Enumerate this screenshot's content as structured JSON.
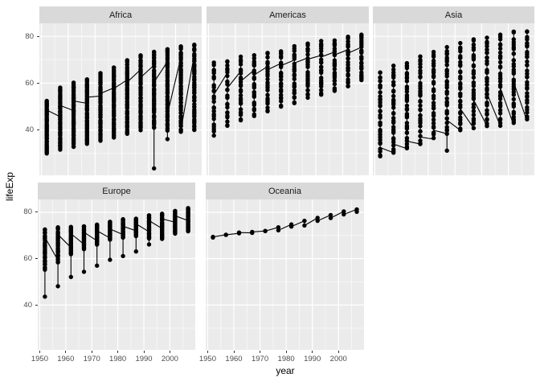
{
  "figure": {
    "background": "#FFFFFF"
  },
  "style": {
    "panel_bg": "#EBEBEB",
    "strip_bg": "#D9D9D9",
    "strip_text_color": "#1A1A1A",
    "grid_major": "#FFFFFF",
    "grid_minor": "rgba(255,255,255,0.55)",
    "point_color": "#000000",
    "line_color": "#000000",
    "axis_text_color": "#4D4D4D",
    "tick_mark_color": "#333333",
    "point_radius": 2.7,
    "line_width": 1.1
  },
  "axes": {
    "x_title": "year",
    "y_title": "lifeExp",
    "x_ticks": [
      {
        "value": 1950,
        "label": "1950"
      },
      {
        "value": 1960,
        "label": "1960"
      },
      {
        "value": 1970,
        "label": "1970"
      },
      {
        "value": 1980,
        "label": "1980"
      },
      {
        "value": 1990,
        "label": "1990"
      },
      {
        "value": 2000,
        "label": "2000"
      }
    ],
    "y_ticks": [
      {
        "value": 80,
        "label": "80"
      },
      {
        "value": 60,
        "label": "60"
      },
      {
        "value": 40,
        "label": "40"
      }
    ],
    "x_minor": [
      1955,
      1965,
      1975,
      1985,
      1995,
      2005
    ],
    "y_minor": [
      30,
      50,
      70
    ],
    "x_domain": [
      1949.25,
      2009.75
    ],
    "y_domain": [
      20.65,
      85.55
    ]
  },
  "chart_data": {
    "type": "scatter",
    "title": "",
    "xlabel": "year",
    "ylabel": "lifeExp",
    "facet_by": "continent",
    "legend": "none",
    "years": [
      1952,
      1957,
      1962,
      1967,
      1972,
      1977,
      1982,
      1987,
      1992,
      1997,
      2002,
      2007
    ],
    "facets": [
      {
        "label": "Africa",
        "n_countries": 52,
        "columns": [
          {
            "min": 30.0,
            "max": 52.7
          },
          {
            "min": 31.6,
            "max": 58.1
          },
          {
            "min": 32.8,
            "max": 60.2
          },
          {
            "min": 34.1,
            "max": 61.6
          },
          {
            "min": 35.4,
            "max": 64.3
          },
          {
            "min": 36.8,
            "max": 67.1
          },
          {
            "min": 38.4,
            "max": 69.9
          },
          {
            "min": 39.9,
            "max": 71.9
          },
          {
            "min": 40.6,
            "max": 73.6,
            "outliers": [
              23.6
            ]
          },
          {
            "min": 39.5,
            "max": 74.8,
            "outliers": [
              36.1
            ]
          },
          {
            "min": 39.2,
            "max": 75.7
          },
          {
            "min": 39.6,
            "max": 76.4
          }
        ],
        "line_first": [
          43.1,
          45.7,
          48.3,
          51.4,
          54.5,
          58.0,
          61.4,
          65.8,
          67.7,
          69.2,
          71.0,
          72.3
        ],
        "line_last": [
          48.5,
          50.5,
          52.4,
          54.0,
          55.6,
          57.7,
          60.4,
          62.4,
          60.4,
          46.8,
          40.0,
          43.5
        ]
      },
      {
        "label": "Americas",
        "n_countries": 25,
        "columns": [
          {
            "min": 37.6,
            "max": 68.8
          },
          {
            "min": 40.9,
            "max": 70.0
          },
          {
            "min": 43.4,
            "max": 71.3
          },
          {
            "min": 46.0,
            "max": 72.1
          },
          {
            "min": 48.0,
            "max": 72.9
          },
          {
            "min": 49.9,
            "max": 74.2
          },
          {
            "min": 51.5,
            "max": 75.8
          },
          {
            "min": 53.6,
            "max": 76.9
          },
          {
            "min": 55.1,
            "max": 78.0
          },
          {
            "min": 56.7,
            "max": 78.6
          },
          {
            "min": 58.1,
            "max": 79.8
          },
          {
            "min": 60.9,
            "max": 80.7
          }
        ],
        "line_first": [
          62.5,
          64.4,
          65.1,
          65.6,
          67.1,
          68.5,
          69.9,
          70.8,
          71.9,
          73.3,
          74.3,
          75.3
        ],
        "line_last": [
          55.1,
          57.9,
          60.8,
          63.5,
          65.7,
          67.5,
          68.6,
          70.2,
          71.2,
          72.1,
          72.8,
          73.7
        ]
      },
      {
        "label": "Asia",
        "n_countries": 33,
        "columns": [
          {
            "min": 28.8,
            "max": 65.4
          },
          {
            "min": 30.3,
            "max": 67.8
          },
          {
            "min": 32.0,
            "max": 69.4
          },
          {
            "min": 34.0,
            "max": 71.4
          },
          {
            "min": 36.1,
            "max": 73.4
          },
          {
            "min": 38.4,
            "max": 75.4,
            "outliers": [
              31.2
            ]
          },
          {
            "min": 39.9,
            "max": 77.1
          },
          {
            "min": 40.8,
            "max": 78.7
          },
          {
            "min": 41.7,
            "max": 79.4
          },
          {
            "min": 41.8,
            "max": 80.7
          },
          {
            "min": 42.1,
            "max": 82.0
          },
          {
            "min": 43.8,
            "max": 82.6
          }
        ],
        "line_first": [
          28.8,
          30.3,
          32.0,
          34.0,
          36.1,
          38.4,
          39.9,
          40.8,
          41.7,
          41.8,
          42.1,
          43.8
        ],
        "line_last": [
          32.5,
          34.0,
          35.2,
          37.0,
          39.9,
          44.2,
          49.1,
          52.9,
          55.6,
          58.0,
          60.3,
          62.7
        ]
      },
      {
        "label": "Europe",
        "n_countries": 30,
        "columns": [
          {
            "min": 55.2,
            "max": 72.7,
            "outliers": [
              43.6
            ]
          },
          {
            "min": 58.4,
            "max": 73.5,
            "outliers": [
              48.1
            ]
          },
          {
            "min": 61.9,
            "max": 73.7,
            "outliers": [
              52.1
            ]
          },
          {
            "min": 64.1,
            "max": 74.2,
            "outliers": [
              54.3
            ]
          },
          {
            "min": 66.0,
            "max": 74.7,
            "outliers": [
              57.0
            ]
          },
          {
            "min": 68.0,
            "max": 76.1,
            "outliers": [
              59.5
            ]
          },
          {
            "min": 69.1,
            "max": 77.0,
            "outliers": [
              61.1
            ]
          },
          {
            "min": 69.6,
            "max": 77.4,
            "outliers": [
              63.1
            ]
          },
          {
            "min": 68.5,
            "max": 78.8,
            "outliers": [
              66.1
            ]
          },
          {
            "min": 68.3,
            "max": 79.4
          },
          {
            "min": 70.8,
            "max": 80.6
          },
          {
            "min": 71.8,
            "max": 81.8
          }
        ],
        "line_first": [
          55.2,
          59.3,
          64.8,
          66.2,
          67.7,
          68.9,
          70.4,
          72.0,
          71.6,
          73.0,
          75.7,
          76.4
        ],
        "line_last": [
          69.2,
          70.4,
          70.8,
          71.4,
          72.0,
          72.8,
          74.0,
          75.0,
          76.4,
          77.2,
          78.5,
          79.4
        ]
      },
      {
        "label": "Oceania",
        "n_countries": 2,
        "columns": [
          {
            "min": 69.12,
            "max": 69.39
          },
          {
            "min": 70.26,
            "max": 70.33
          },
          {
            "min": 70.93,
            "max": 71.24
          },
          {
            "min": 71.1,
            "max": 71.52
          },
          {
            "min": 71.89,
            "max": 71.93
          },
          {
            "min": 72.22,
            "max": 73.49
          },
          {
            "min": 73.84,
            "max": 74.74
          },
          {
            "min": 74.32,
            "max": 76.32
          },
          {
            "min": 76.33,
            "max": 77.56
          },
          {
            "min": 77.55,
            "max": 78.83
          },
          {
            "min": 79.11,
            "max": 80.37
          },
          {
            "min": 80.2,
            "max": 81.24
          }
        ],
        "line_first": [
          69.12,
          70.33,
          70.93,
          71.1,
          71.93,
          73.49,
          74.74,
          76.32,
          77.56,
          78.83,
          80.37,
          81.24
        ],
        "line_last": [
          69.39,
          70.26,
          71.24,
          71.52,
          71.89,
          72.22,
          73.84,
          74.32,
          76.33,
          77.55,
          79.11,
          80.2
        ]
      }
    ]
  }
}
